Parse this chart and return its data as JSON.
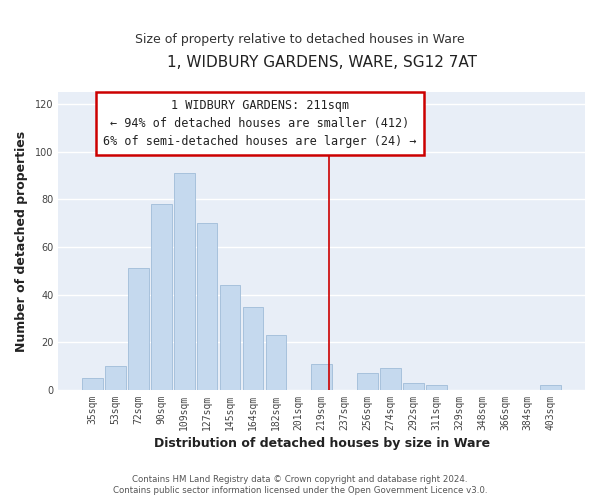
{
  "title": "1, WIDBURY GARDENS, WARE, SG12 7AT",
  "subtitle": "Size of property relative to detached houses in Ware",
  "xlabel": "Distribution of detached houses by size in Ware",
  "ylabel": "Number of detached properties",
  "bar_labels": [
    "35sqm",
    "53sqm",
    "72sqm",
    "90sqm",
    "109sqm",
    "127sqm",
    "145sqm",
    "164sqm",
    "182sqm",
    "201sqm",
    "219sqm",
    "237sqm",
    "256sqm",
    "274sqm",
    "292sqm",
    "311sqm",
    "329sqm",
    "348sqm",
    "366sqm",
    "384sqm",
    "403sqm"
  ],
  "bar_values": [
    5,
    10,
    51,
    78,
    91,
    70,
    44,
    35,
    23,
    0,
    11,
    0,
    7,
    9,
    3,
    2,
    0,
    0,
    0,
    0,
    2
  ],
  "bar_color": "#c5d9ee",
  "bar_edge_color": "#a0bcd8",
  "ylim": [
    0,
    125
  ],
  "yticks": [
    0,
    20,
    40,
    60,
    80,
    100,
    120
  ],
  "annotation_title": "1 WIDBURY GARDENS: 211sqm",
  "annotation_line1": "← 94% of detached houses are smaller (412)",
  "annotation_line2": "6% of semi-detached houses are larger (24) →",
  "vline_x": 10.3,
  "footer1": "Contains HM Land Registry data © Crown copyright and database right 2024.",
  "footer2": "Contains public sector information licensed under the Open Government Licence v3.0.",
  "plot_bg_color": "#e8eef7",
  "fig_bg_color": "#ffffff",
  "grid_color": "#ffffff",
  "title_fontsize": 11,
  "subtitle_fontsize": 9,
  "label_fontsize": 9,
  "tick_fontsize": 7,
  "ann_fontsize": 8.5
}
